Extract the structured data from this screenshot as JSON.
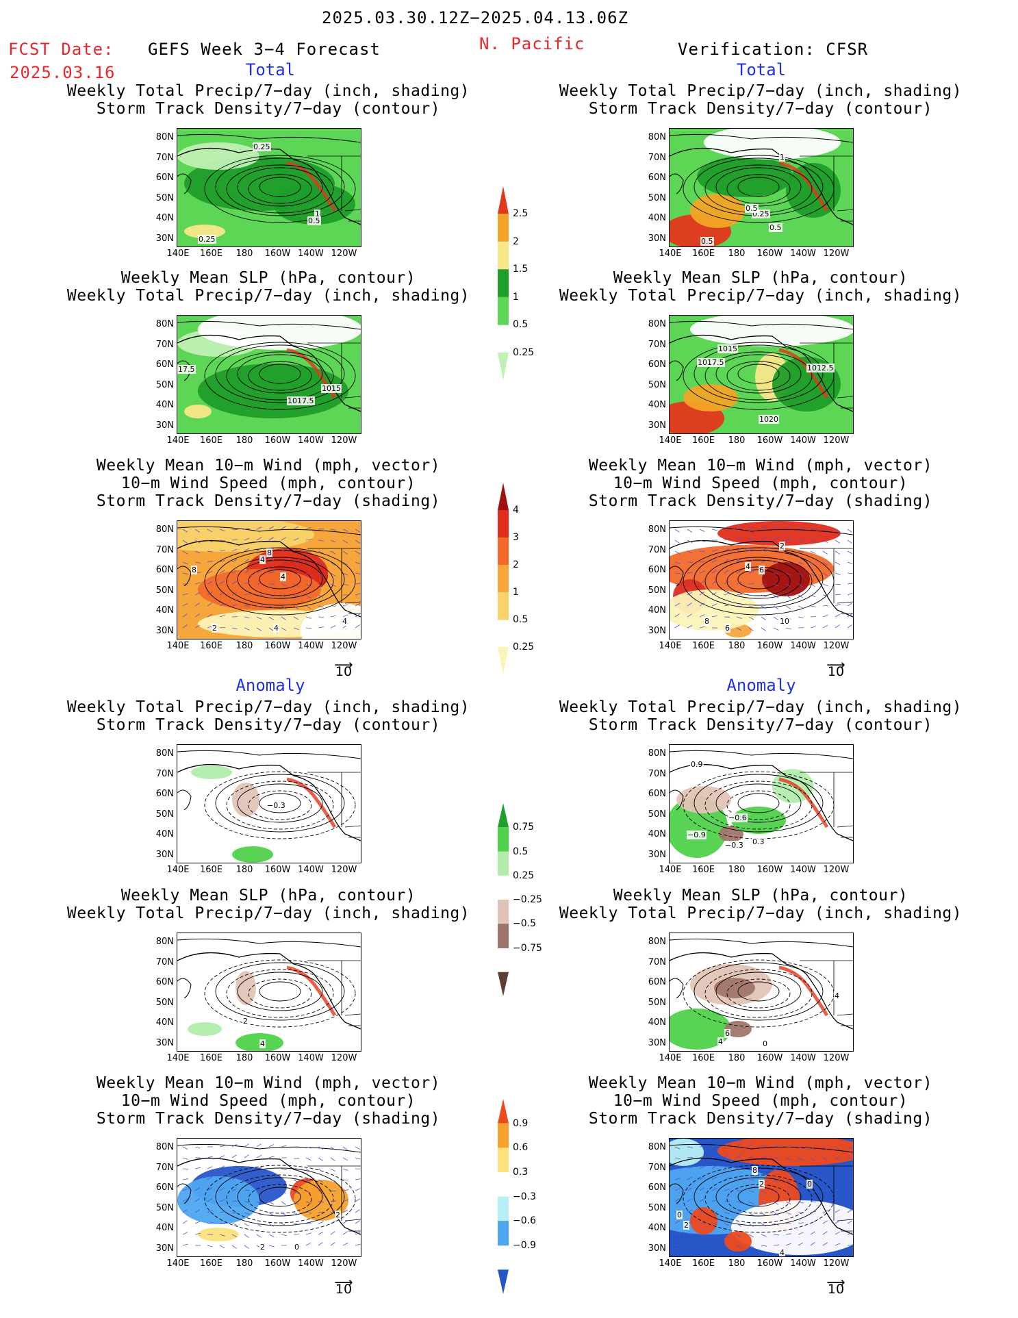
{
  "header": {
    "date_range": "2025.03.30.12Z−2025.04.13.06Z",
    "fcst_label": "FCST Date:",
    "fcst_date": "2025.03.16",
    "model": "GEFS Week 3−4 Forecast",
    "region": "N. Pacific",
    "verification": "Verification: CFSR"
  },
  "sections": {
    "total": "Total",
    "anomaly": "Anomaly"
  },
  "titles": {
    "precip_storm": [
      "Weekly Total Precip/7−day (inch, shading)",
      "Storm Track Density/7−day (contour)"
    ],
    "slp_precip": [
      "Weekly Mean SLP (hPa, contour)",
      "Weekly Total Precip/7−day (inch, shading)"
    ],
    "wind_storm": [
      "Weekly Mean 10−m Wind (mph, vector)",
      "10−m Wind Speed (mph, contour)",
      "Storm Track Density/7−day (shading)"
    ]
  },
  "axes": {
    "lat": [
      "80N",
      "70N",
      "60N",
      "50N",
      "40N",
      "30N"
    ],
    "lon": [
      "140E",
      "160E",
      "180",
      "160W",
      "140W",
      "120W"
    ]
  },
  "vector_ref": "10",
  "colorbars": {
    "precip_total": {
      "labels": [
        "2.5",
        "2",
        "1.5",
        "1",
        "0.5",
        "0.25"
      ],
      "colors": [
        "#e1371c",
        "#f4a425",
        "#f8e68a",
        "#1e9e2a",
        "#5cd654",
        "#bff0b5"
      ]
    },
    "storm_total": {
      "labels": [
        "4",
        "3",
        "2",
        "1",
        "0.5",
        "0.25"
      ],
      "colors": [
        "#a01010",
        "#e02d1c",
        "#f2692a",
        "#f6a63a",
        "#f8d26a",
        "#fbf3b8"
      ]
    },
    "precip_anom": {
      "labels": [
        "0.75",
        "0.5",
        "0.25",
        "−0.25",
        "−0.5",
        "−0.75"
      ],
      "colors": [
        "#1ea02a",
        "#4fd14a",
        "#b2edae",
        "#ffffff",
        "#e2c4b6",
        "#a0766a",
        "#5e3d33"
      ]
    },
    "storm_anom": {
      "labels": [
        "0.9",
        "0.6",
        "0.3",
        "−0.3",
        "−0.6",
        "−0.9"
      ],
      "colors": [
        "#ee4a1e",
        "#f6a12c",
        "#fbe27c",
        "#ffffff",
        "#b8eff6",
        "#4ea6f0",
        "#2756c8"
      ]
    }
  },
  "map_labels": {
    "p1": [
      "0.25",
      "1",
      "0.5",
      "0.25"
    ],
    "p2": [
      "0.25",
      "0.5",
      "0.5",
      "0.5",
      "1"
    ],
    "p3": [
      "17.5",
      "1015",
      "1017.5"
    ],
    "p4": [
      "1015",
      "1017.5",
      "1012.5",
      "1020"
    ],
    "p5": [
      "8",
      "4",
      "4",
      "8",
      "2",
      "4",
      "4"
    ],
    "p6": [
      "2",
      "4",
      "6",
      "8",
      "6",
      "10"
    ],
    "p7": [
      "−0.3"
    ],
    "p8": [
      "0.9",
      "−0.6",
      "−0.9",
      "−0.3",
      "0.3"
    ],
    "p9": [
      "4",
      "2"
    ],
    "p10": [
      "6",
      "4",
      "0",
      "4"
    ],
    "p11": [
      "2",
      "2",
      "0"
    ],
    "p12": [
      "8",
      "2",
      "0",
      "0",
      "2",
      "4"
    ]
  }
}
